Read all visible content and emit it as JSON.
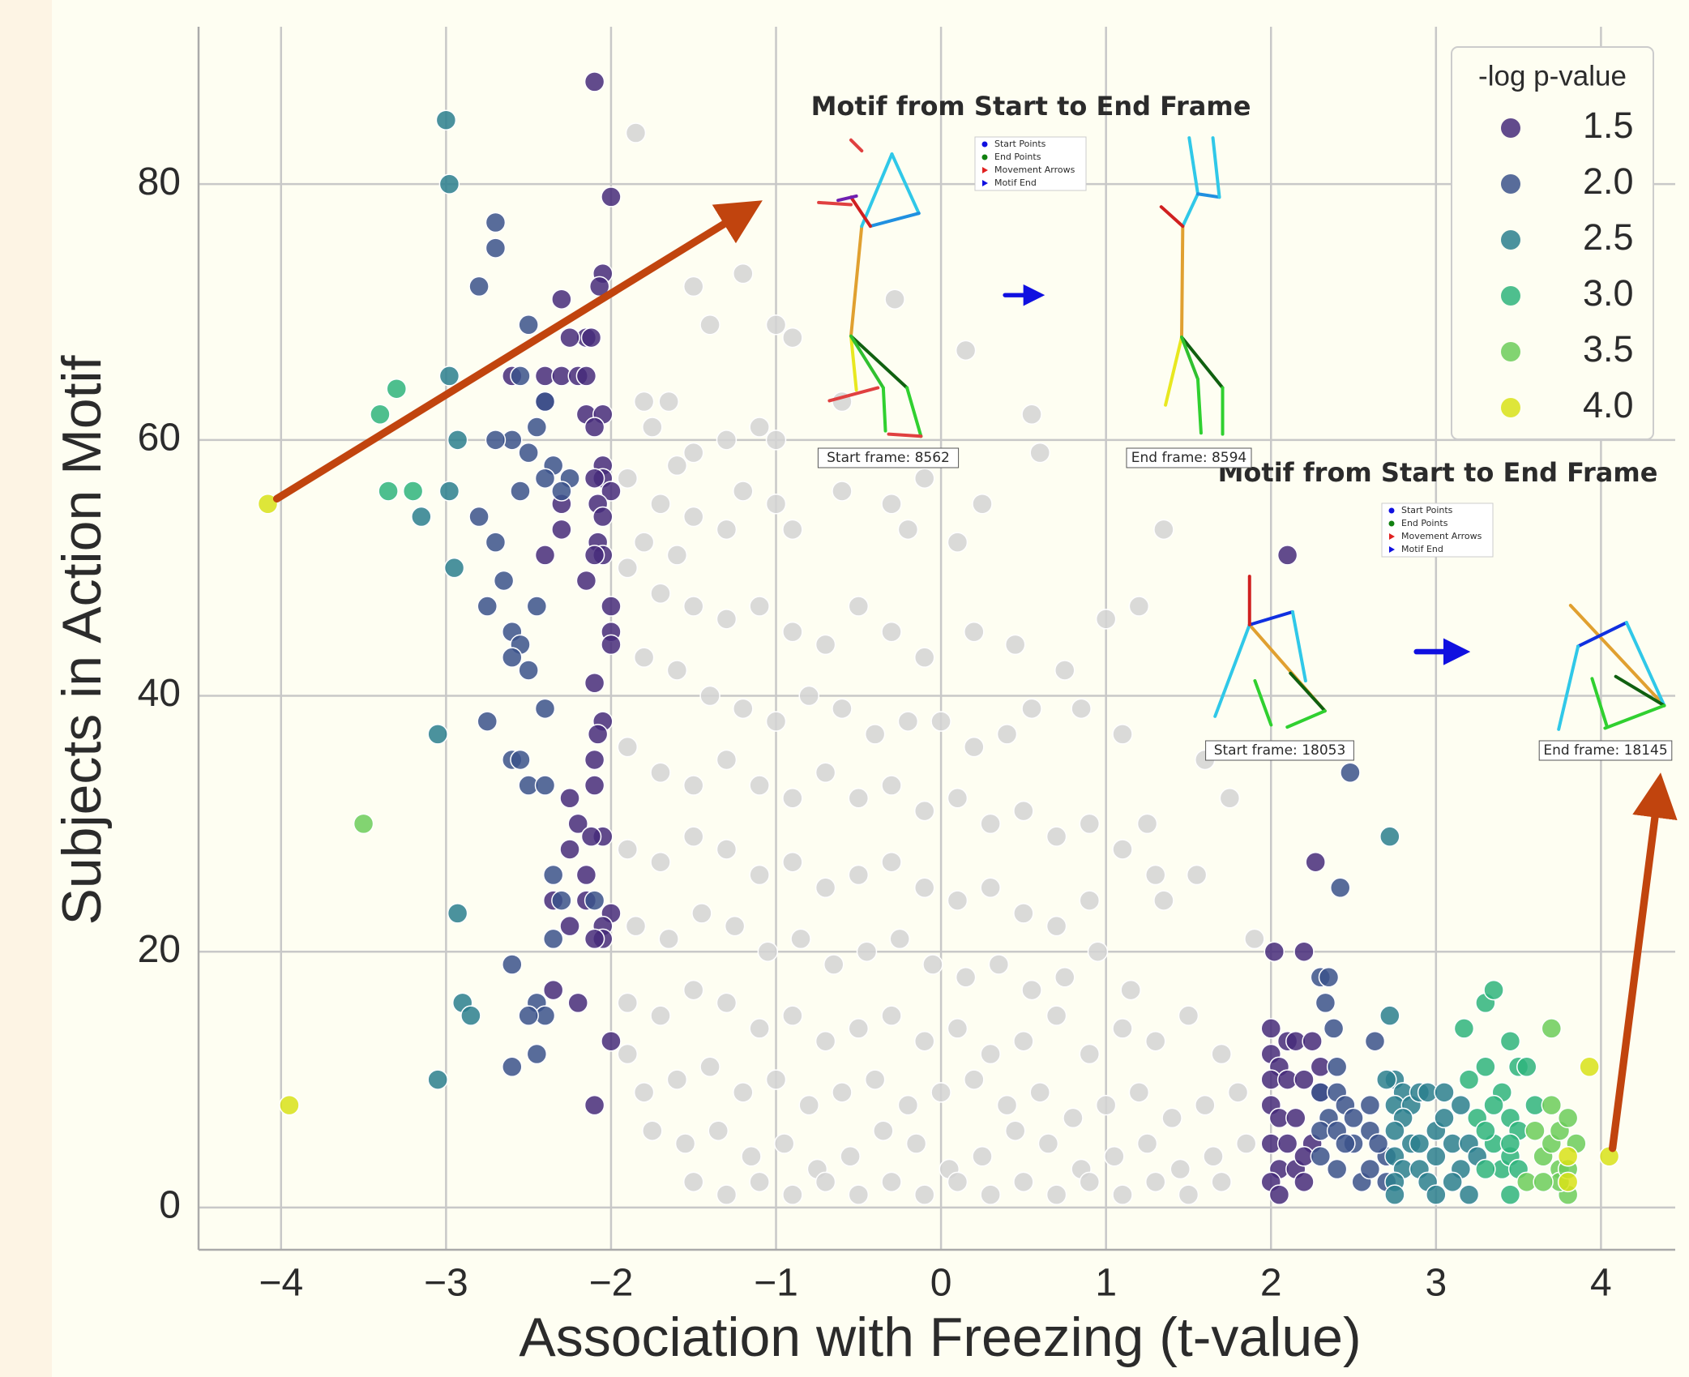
{
  "chart_data": {
    "type": "scatter",
    "xlabel": "Association with Freezing (t-value)",
    "ylabel": "Subjects in Action Motif",
    "xlim": [
      -4.5,
      4.45
    ],
    "ylim": [
      -3.3,
      92.3
    ],
    "xticks": [
      {
        "value": -4,
        "label": "−4"
      },
      {
        "value": -3,
        "label": "−3"
      },
      {
        "value": -2,
        "label": "−2"
      },
      {
        "value": -1,
        "label": "−1"
      },
      0,
      1,
      2,
      3,
      4
    ],
    "yticks": [
      0,
      20,
      40,
      60,
      80
    ],
    "grid": true,
    "legend": "upper right",
    "legend_title": "-log p-value",
    "series": [
      {
        "color": "#d3d3d3",
        "x": [
          -1.85,
          -1.5,
          -1.2,
          -1.0,
          -1.4,
          -0.9,
          0.15,
          -0.28,
          -1.8,
          -1.75,
          -1.6,
          -1.5,
          -1.3,
          -1.1,
          -1.0,
          -1.9,
          -1.7,
          -1.5,
          -1.3,
          -1.8,
          -1.6,
          -1.9,
          -1.2,
          -1.0,
          -0.9,
          -0.6,
          -0.3,
          -0.1,
          0.25,
          0.6,
          1.35,
          -0.2,
          0.1,
          -1.7,
          -1.5,
          -1.3,
          -1.1,
          -0.9,
          -0.7,
          -0.5,
          -0.3,
          -0.1,
          0.2,
          0.45,
          0.75,
          1.0,
          1.2,
          -1.8,
          -1.6,
          -1.4,
          -1.2,
          -1.0,
          -0.8,
          -0.6,
          -0.4,
          -0.2,
          0.0,
          0.2,
          0.4,
          0.55,
          0.85,
          1.1,
          -1.9,
          -1.7,
          -1.5,
          -1.3,
          -1.1,
          -0.9,
          -0.7,
          -0.5,
          -0.3,
          -0.1,
          0.1,
          0.3,
          0.5,
          0.7,
          0.9,
          1.1,
          1.3,
          -1.9,
          -1.7,
          -1.5,
          -1.3,
          -1.1,
          -0.9,
          -0.7,
          -0.5,
          -0.3,
          -0.1,
          0.1,
          0.3,
          0.5,
          0.7,
          0.9,
          1.35,
          -1.85,
          -1.65,
          -1.45,
          -1.25,
          -1.05,
          -0.85,
          -0.65,
          -0.45,
          -0.25,
          -0.05,
          0.15,
          0.35,
          0.55,
          0.75,
          0.95,
          1.15,
          -1.9,
          -1.7,
          -1.5,
          -1.3,
          -1.1,
          -0.9,
          -0.7,
          -0.5,
          -0.3,
          -0.1,
          0.1,
          0.3,
          0.5,
          0.7,
          0.9,
          1.1,
          1.3,
          1.5,
          1.7,
          -1.9,
          -1.8,
          -1.6,
          -1.4,
          -1.2,
          -1.0,
          -0.8,
          -0.6,
          -0.4,
          -0.2,
          0.0,
          0.2,
          0.4,
          0.6,
          0.8,
          1.0,
          1.2,
          1.4,
          1.6,
          1.8,
          -1.75,
          -1.55,
          -1.35,
          -1.15,
          -0.95,
          -0.75,
          -0.55,
          -0.35,
          -0.15,
          0.05,
          0.25,
          0.45,
          0.65,
          0.85,
          1.05,
          1.25,
          1.45,
          1.65,
          1.85,
          -1.5,
          -1.3,
          -1.1,
          -0.9,
          -0.7,
          -0.5,
          -0.3,
          -0.1,
          0.1,
          0.3,
          0.5,
          0.7,
          0.9,
          1.1,
          1.3,
          1.5,
          1.7,
          1.9,
          1.6,
          1.75,
          1.55,
          1.25,
          -0.6,
          0.55,
          -1.65
        ],
        "y": [
          84,
          72,
          73,
          69,
          69,
          68,
          67,
          71,
          63,
          61,
          58,
          59,
          60,
          61,
          60,
          57,
          55,
          54,
          53,
          52,
          51,
          50,
          56,
          55,
          53,
          56,
          55,
          57,
          55,
          59,
          53,
          53,
          52,
          48,
          47,
          46,
          47,
          45,
          44,
          47,
          45,
          43,
          45,
          44,
          42,
          46,
          47,
          43,
          42,
          40,
          39,
          38,
          40,
          39,
          37,
          38,
          38,
          36,
          37,
          39,
          39,
          37,
          36,
          34,
          33,
          35,
          33,
          32,
          34,
          32,
          33,
          31,
          32,
          30,
          31,
          29,
          30,
          28,
          26,
          28,
          27,
          29,
          28,
          26,
          27,
          25,
          26,
          27,
          25,
          24,
          25,
          23,
          22,
          24,
          24,
          22,
          21,
          23,
          22,
          20,
          21,
          19,
          20,
          21,
          19,
          18,
          19,
          17,
          18,
          20,
          17,
          16,
          15,
          17,
          16,
          14,
          15,
          13,
          14,
          15,
          13,
          14,
          12,
          13,
          15,
          12,
          14,
          13,
          15,
          12,
          12,
          9,
          10,
          11,
          9,
          10,
          8,
          9,
          10,
          8,
          9,
          10,
          8,
          9,
          7,
          8,
          9,
          7,
          8,
          9,
          6,
          5,
          6,
          4,
          5,
          3,
          4,
          6,
          5,
          3,
          4,
          6,
          5,
          3,
          4,
          5,
          3,
          4,
          5,
          2,
          1,
          2,
          1,
          2,
          1,
          2,
          1,
          2,
          1,
          2,
          1,
          2,
          1,
          2,
          1,
          2,
          21,
          35,
          32,
          26,
          30,
          63,
          62,
          63
        ]
      },
      {
        "name": "1.5",
        "color": "#472c7a",
        "x": [
          -2.1,
          -2.0,
          -2.05,
          -2.07,
          -2.3,
          -2.15,
          -2.12,
          -2.25,
          -2.6,
          -2.4,
          -2.3,
          -2.2,
          -2.15,
          -2.4,
          -2.15,
          -2.05,
          -2.1,
          -2.05,
          -2.05,
          -2.1,
          -2.0,
          -2.3,
          -2.08,
          -2.05,
          -2.3,
          -2.08,
          -2.05,
          -2.1,
          -2.4,
          -2.15,
          -2.0,
          -2.0,
          -2.0,
          -2.1,
          -2.05,
          -2.08,
          -2.1,
          -2.1,
          -2.25,
          -2.2,
          -2.05,
          -2.12,
          -2.15,
          -2.35,
          -2.15,
          -2.0,
          -2.05,
          -2.25,
          -2.05,
          -2.1,
          -2.2,
          -2.0,
          -2.1,
          -2.35,
          -2.25,
          2.02,
          2.2,
          2.27,
          2.1,
          2.0,
          2.0,
          2.1,
          2.15,
          2.05,
          2.0,
          2.1,
          2.2,
          2.0,
          2.05,
          2.15,
          2.0,
          2.1,
          2.25,
          2.05,
          2.15,
          2.2,
          2.0,
          2.05,
          2.2,
          2.3,
          2.3,
          2.25
        ],
        "y": [
          88,
          79,
          73,
          72,
          71,
          68,
          68,
          68,
          65,
          65,
          65,
          65,
          65,
          63,
          62,
          62,
          61,
          58,
          57,
          57,
          56,
          55,
          55,
          54,
          53,
          52,
          51,
          51,
          51,
          49,
          47,
          45,
          44,
          41,
          38,
          37,
          35,
          33,
          32,
          30,
          29,
          29,
          26,
          24,
          24,
          23,
          22,
          22,
          21,
          21,
          16,
          13,
          8,
          17,
          28,
          20,
          20,
          27,
          51,
          14,
          12,
          13,
          13,
          11,
          10,
          10,
          10,
          8,
          7,
          7,
          5,
          5,
          5,
          3,
          3,
          4,
          2,
          1,
          2,
          11,
          9,
          13
        ]
      },
      {
        "name": "2.0",
        "color": "#3b528b",
        "x": [
          -2.5,
          -2.4,
          -2.55,
          -2.6,
          -2.45,
          -2.5,
          -2.35,
          -2.25,
          -2.4,
          -2.3,
          -2.55,
          -2.7,
          -2.8,
          -2.7,
          -2.65,
          -2.75,
          -2.45,
          -2.6,
          -2.55,
          -2.6,
          -2.5,
          -2.4,
          -2.5,
          -2.6,
          -2.55,
          -2.4,
          -2.35,
          -2.3,
          -2.1,
          -2.35,
          -2.6,
          -2.45,
          -2.4,
          -2.5,
          -2.45,
          -2.6,
          -2.75,
          -2.7,
          -2.7,
          -2.8,
          2.3,
          2.35,
          2.33,
          2.38,
          2.4,
          2.3,
          2.4,
          2.45,
          2.5,
          2.35,
          2.3,
          2.4,
          2.5,
          2.3,
          2.4,
          2.45,
          2.55,
          2.6,
          2.48,
          2.42,
          2.7,
          2.6,
          2.65,
          2.6,
          2.7,
          2.63
        ],
        "y": [
          69,
          63,
          65,
          60,
          61,
          59,
          58,
          57,
          57,
          56,
          56,
          60,
          54,
          52,
          49,
          47,
          47,
          45,
          44,
          43,
          42,
          39,
          33,
          35,
          35,
          33,
          26,
          24,
          24,
          21,
          19,
          16,
          15,
          15,
          12,
          11,
          38,
          75,
          77,
          72,
          18,
          18,
          16,
          14,
          11,
          9,
          9,
          8,
          7,
          7,
          6,
          6,
          5,
          4,
          3,
          5,
          2,
          3,
          34,
          25,
          4,
          6,
          5,
          8,
          2,
          13
        ]
      },
      {
        "name": "2.5",
        "color": "#2c7f8e",
        "x": [
          -3.0,
          -2.98,
          -2.98,
          -2.93,
          -2.98,
          -2.95,
          -3.05,
          -2.93,
          -2.9,
          -2.85,
          -3.05,
          -3.15,
          2.72,
          2.72,
          2.75,
          2.7,
          2.8,
          2.75,
          2.85,
          2.9,
          2.8,
          2.75,
          2.85,
          2.9,
          2.75,
          2.8,
          2.9,
          2.75,
          2.95,
          2.75,
          3.0,
          3.0,
          3.0,
          3.05,
          3.1,
          2.95,
          3.05,
          3.15,
          3.2,
          3.15,
          3.2,
          3.25,
          3.1
        ],
        "y": [
          85,
          80,
          65,
          60,
          56,
          50,
          37,
          23,
          16,
          15,
          10,
          54,
          29,
          15,
          10,
          10,
          9,
          8,
          8,
          9,
          7,
          6,
          5,
          5,
          4,
          3,
          3,
          2,
          2,
          1,
          6,
          4,
          1,
          7,
          5,
          9,
          9,
          8,
          5,
          3,
          1,
          4,
          2
        ]
      },
      {
        "name": "3.0",
        "color": "#2fb47c",
        "x": [
          -3.3,
          -3.4,
          -3.35,
          -3.2,
          3.17,
          3.3,
          3.35,
          3.3,
          3.25,
          3.4,
          3.45,
          3.5,
          3.35,
          3.45,
          3.4,
          3.45,
          3.3,
          3.35,
          3.5,
          3.45,
          3.5,
          3.55,
          3.45,
          3.6,
          3.2,
          3.3
        ],
        "y": [
          64,
          62,
          56,
          56,
          14,
          16,
          17,
          11,
          7,
          9,
          13,
          11,
          5,
          7,
          3,
          1,
          3,
          8,
          6,
          4,
          3,
          11,
          5,
          8,
          10,
          6
        ]
      },
      {
        "name": "3.5",
        "color": "#6ccd5a",
        "x": [
          -3.5,
          3.7,
          3.55,
          3.6,
          3.65,
          3.7,
          3.75,
          3.8,
          3.75,
          3.8,
          3.85,
          3.75,
          3.8,
          3.7,
          3.65
        ],
        "y": [
          30,
          14,
          2,
          6,
          4,
          5,
          6,
          7,
          3,
          1,
          5,
          2,
          3,
          8,
          2
        ]
      },
      {
        "name": "4.0",
        "color": "#d8e219",
        "x": [
          -4.08,
          -3.95,
          3.93,
          4.05,
          3.8,
          3.8
        ],
        "y": [
          55,
          8,
          11,
          4,
          4,
          2
        ]
      }
    ],
    "insets": [
      {
        "title": "Motif from Start to End Frame",
        "legend": [
          "Start Points",
          "End Points",
          "Movement Arrows",
          "Motif End"
        ],
        "start_label": "Start frame: 8562",
        "end_label": "End frame: 8594"
      },
      {
        "title": "Motif from Start to End Frame",
        "legend": [
          "Start Points",
          "End Points",
          "Movement Arrows",
          "Motif End"
        ],
        "start_label": "Start frame: 18053",
        "end_label": "End frame: 18145"
      }
    ]
  }
}
